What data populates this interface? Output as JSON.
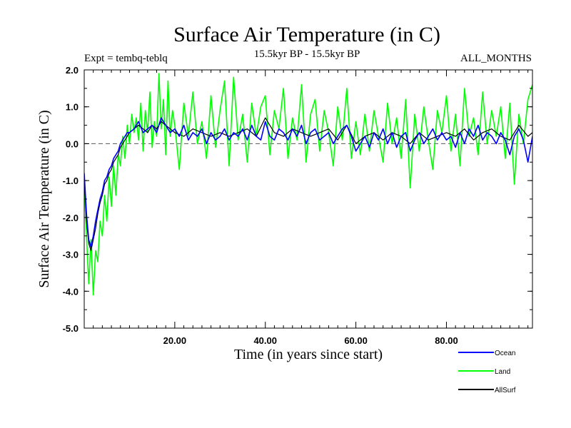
{
  "header": {
    "title": "Surface Air Temperature (in C)",
    "expt": "Expt = tembq-teblq",
    "period": "15.5kyr BP - 15.5kyr BP",
    "months": "ALL_MONTHS"
  },
  "chart_data": {
    "type": "line",
    "title": "Surface Air Temperature (in C)",
    "xlabel": "Time (in years since start)",
    "ylabel": "Surface Air Temperature (in C)",
    "xlim": [
      0,
      99
    ],
    "ylim": [
      -5.0,
      2.0
    ],
    "x_ticks": [
      20,
      40,
      60,
      80
    ],
    "x_tick_labels": [
      "20.00",
      "40.00",
      "60.00",
      "80.00"
    ],
    "y_ticks": [
      -5,
      -4,
      -3,
      -2,
      -1,
      0,
      1,
      2
    ],
    "y_tick_labels": [
      "-5.0",
      "-4.0",
      "-3.0",
      "-2.0",
      "-1.0",
      "0.0",
      "1.0",
      "2.0"
    ],
    "reference_line": 0.0,
    "legend_position": "bottom-right",
    "series": [
      {
        "name": "Land",
        "color": "#00ff00",
        "x": [
          0,
          0.5,
          1,
          1.5,
          2,
          2.5,
          3,
          3.5,
          4,
          4.5,
          5,
          5.5,
          6,
          6.5,
          7,
          7.5,
          8,
          8.5,
          9,
          9.5,
          10,
          10.5,
          11,
          11.5,
          12,
          12.5,
          13,
          13.5,
          14,
          14.5,
          15,
          15.5,
          16,
          16.5,
          17,
          17.5,
          18,
          18.5,
          19,
          19.5,
          20,
          21,
          22,
          23,
          24,
          25,
          26,
          27,
          28,
          29,
          30,
          31,
          32,
          33,
          34,
          35,
          36,
          37,
          38,
          39,
          40,
          41,
          42,
          43,
          44,
          45,
          46,
          47,
          48,
          49,
          50,
          51,
          52,
          53,
          54,
          55,
          56,
          57,
          58,
          59,
          60,
          61,
          62,
          63,
          64,
          65,
          66,
          67,
          68,
          69,
          70,
          71,
          72,
          73,
          74,
          75,
          76,
          77,
          78,
          79,
          80,
          81,
          82,
          83,
          84,
          85,
          86,
          87,
          88,
          89,
          90,
          91,
          92,
          93,
          94,
          95,
          96,
          97,
          98,
          99
        ],
        "values": [
          -1.0,
          -2.5,
          -3.8,
          -2.6,
          -4.1,
          -2.9,
          -3.2,
          -2.1,
          -2.5,
          -1.4,
          -2.1,
          -0.9,
          -1.7,
          -0.6,
          -1.4,
          -0.3,
          -0.6,
          0.2,
          -0.4,
          0.5,
          0.0,
          0.8,
          0.3,
          0.7,
          0.1,
          1.1,
          -0.2,
          0.9,
          0.3,
          1.4,
          -0.1,
          0.6,
          0.2,
          1.9,
          0.4,
          1.2,
          -0.3,
          1.7,
          0.2,
          0.9,
          0.5,
          -0.7,
          1.1,
          0.2,
          1.4,
          0.0,
          0.6,
          -0.4,
          1.3,
          -0.1,
          0.9,
          1.7,
          -0.6,
          1.8,
          0.1,
          0.8,
          -0.5,
          1.1,
          0.2,
          1.0,
          1.3,
          -0.3,
          0.9,
          0.4,
          1.5,
          -0.4,
          0.7,
          0.1,
          1.6,
          -0.5,
          0.8,
          1.2,
          -0.2,
          0.9,
          0.3,
          -0.6,
          1.0,
          0.1,
          1.5,
          -0.4,
          0.6,
          -0.3,
          0.8,
          -0.2,
          0.9,
          0.2,
          -0.5,
          1.1,
          0.0,
          0.7,
          -0.4,
          1.2,
          -1.2,
          0.8,
          -0.2,
          1.0,
          0.1,
          -0.7,
          0.9,
          0.3,
          1.3,
          -0.2,
          0.8,
          -0.6,
          1.5,
          0.2,
          0.7,
          -0.3,
          1.4,
          0.0,
          0.9,
          0.2,
          1.0,
          -0.4,
          1.1,
          -1.1,
          0.8,
          0.0,
          1.2,
          1.6
        ]
      },
      {
        "name": "AllSurf",
        "color": "#000000",
        "x": [
          0,
          0.5,
          1,
          1.5,
          2,
          2.5,
          3,
          3.5,
          4,
          4.5,
          5,
          5.5,
          6,
          6.5,
          7,
          7.5,
          8,
          8.5,
          9,
          9.5,
          10,
          11,
          12,
          13,
          14,
          15,
          16,
          17,
          18,
          19,
          20,
          22,
          24,
          26,
          28,
          30,
          32,
          34,
          36,
          38,
          40,
          42,
          44,
          46,
          48,
          50,
          52,
          54,
          56,
          58,
          60,
          62,
          64,
          66,
          68,
          70,
          72,
          74,
          76,
          78,
          80,
          82,
          84,
          86,
          88,
          90,
          92,
          94,
          96,
          98,
          99
        ],
        "values": [
          -0.9,
          -2.1,
          -2.7,
          -2.9,
          -2.6,
          -2.3,
          -1.9,
          -1.6,
          -1.4,
          -1.1,
          -1.0,
          -0.8,
          -0.7,
          -0.5,
          -0.4,
          -0.3,
          -0.1,
          0.0,
          0.1,
          0.2,
          0.3,
          0.4,
          0.5,
          0.4,
          0.3,
          0.5,
          0.4,
          0.6,
          0.5,
          0.4,
          0.3,
          0.2,
          0.4,
          0.3,
          0.2,
          0.3,
          0.2,
          0.3,
          0.4,
          0.2,
          0.7,
          0.3,
          0.2,
          0.4,
          0.3,
          0.2,
          0.3,
          0.4,
          0.1,
          0.5,
          0.0,
          0.2,
          0.3,
          0.1,
          0.3,
          0.2,
          0.0,
          0.3,
          0.1,
          0.2,
          0.3,
          0.2,
          0.4,
          0.1,
          0.3,
          0.4,
          0.2,
          0.1,
          0.5,
          0.2,
          0.3
        ]
      },
      {
        "name": "Ocean",
        "color": "#0000ff",
        "x": [
          0,
          0.5,
          1,
          1.5,
          2,
          2.5,
          3,
          3.5,
          4,
          4.5,
          5,
          5.5,
          6,
          6.5,
          7,
          7.5,
          8,
          8.5,
          9,
          9.5,
          10,
          11,
          12,
          13,
          14,
          15,
          16,
          17,
          18,
          19,
          20,
          21,
          22,
          23,
          24,
          25,
          26,
          27,
          28,
          29,
          30,
          31,
          32,
          33,
          34,
          35,
          36,
          37,
          38,
          39,
          40,
          41,
          42,
          43,
          44,
          45,
          46,
          47,
          48,
          49,
          50,
          51,
          52,
          53,
          54,
          55,
          56,
          57,
          58,
          59,
          60,
          61,
          62,
          63,
          64,
          65,
          66,
          67,
          68,
          69,
          70,
          71,
          72,
          73,
          74,
          75,
          76,
          77,
          78,
          79,
          80,
          81,
          82,
          83,
          84,
          85,
          86,
          87,
          88,
          89,
          90,
          91,
          92,
          93,
          94,
          95,
          96,
          97,
          98,
          99
        ],
        "values": [
          -0.8,
          -1.9,
          -2.6,
          -2.8,
          -2.5,
          -2.1,
          -1.8,
          -1.5,
          -1.3,
          -1.0,
          -0.9,
          -0.7,
          -0.6,
          -0.4,
          -0.3,
          -0.2,
          0.0,
          0.1,
          0.2,
          0.3,
          0.3,
          0.4,
          0.6,
          0.3,
          0.4,
          0.5,
          0.3,
          0.7,
          0.5,
          0.3,
          0.4,
          0.2,
          0.5,
          0.1,
          0.3,
          0.2,
          0.4,
          0.0,
          0.3,
          0.1,
          0.2,
          0.4,
          0.1,
          0.3,
          0.2,
          0.4,
          0.1,
          0.5,
          0.2,
          0.1,
          0.6,
          0.2,
          0.1,
          0.4,
          0.3,
          0.1,
          0.4,
          0.2,
          0.5,
          0.0,
          0.3,
          0.4,
          0.1,
          0.2,
          0.3,
          0.0,
          0.2,
          0.4,
          0.5,
          0.2,
          -0.2,
          0.0,
          0.2,
          -0.1,
          0.3,
          0.1,
          0.4,
          0.0,
          0.3,
          -0.1,
          0.2,
          0.3,
          -0.2,
          0.1,
          0.3,
          0.0,
          0.2,
          0.4,
          0.1,
          0.3,
          0.1,
          0.2,
          -0.1,
          0.3,
          0.0,
          0.4,
          0.2,
          0.5,
          0.1,
          0.3,
          0.2,
          0.0,
          0.3,
          0.1,
          -0.3,
          0.2,
          0.4,
          0.1,
          -0.5,
          0.2
        ]
      }
    ]
  }
}
